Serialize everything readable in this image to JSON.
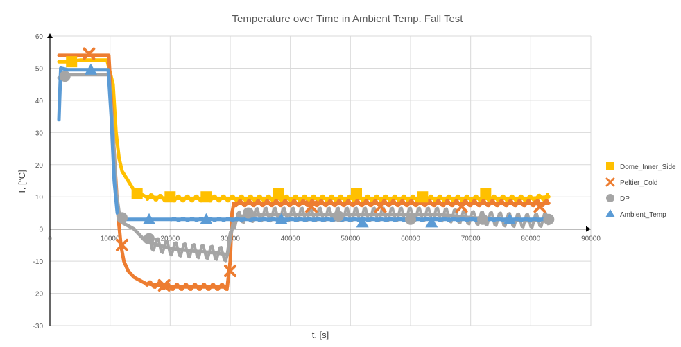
{
  "chart_data": {
    "type": "scatter",
    "title": "Temperature over Time in Ambient Temp. Fall Test",
    "xlabel": "t, [s]",
    "ylabel": "T, [°C]",
    "xlim": [
      0,
      90000
    ],
    "ylim": [
      -30,
      60
    ],
    "x_ticks": [
      0,
      10000,
      20000,
      30000,
      40000,
      50000,
      60000,
      70000,
      80000,
      90000
    ],
    "y_ticks": [
      -30,
      -20,
      -10,
      0,
      10,
      20,
      30,
      40,
      50,
      60
    ],
    "grid": true,
    "legend_position": "right",
    "series": [
      {
        "name": "Dome_Inner_Side",
        "color": "#ffc000",
        "marker": "square",
        "points": [
          [
            1500,
            52
          ],
          [
            3000,
            52
          ],
          [
            5000,
            52.5
          ],
          [
            7000,
            52.5
          ],
          [
            9500,
            52.5
          ],
          [
            10500,
            45
          ],
          [
            11000,
            30
          ],
          [
            11500,
            22
          ],
          [
            12000,
            18
          ],
          [
            13000,
            15
          ],
          [
            14000,
            12
          ],
          [
            15000,
            11
          ],
          [
            16000,
            10
          ],
          [
            20000,
            9.5
          ],
          [
            25000,
            9.5
          ],
          [
            30000,
            9.5
          ],
          [
            35000,
            9.5
          ],
          [
            40000,
            9.5
          ],
          [
            45000,
            9.5
          ],
          [
            50000,
            9.5
          ],
          [
            55000,
            9.5
          ],
          [
            60000,
            9.5
          ],
          [
            65000,
            9.5
          ],
          [
            70000,
            9.5
          ],
          [
            75000,
            9.5
          ],
          [
            80000,
            9.5
          ],
          [
            83000,
            10
          ]
        ],
        "markers_at": [
          [
            3600,
            52
          ],
          [
            14500,
            11
          ],
          [
            20000,
            10
          ],
          [
            26000,
            10
          ],
          [
            38000,
            11
          ],
          [
            51000,
            11
          ],
          [
            62000,
            10
          ],
          [
            72500,
            11
          ]
        ]
      },
      {
        "name": "Peltier_Cold",
        "color": "#ed7d31",
        "marker": "x",
        "points": [
          [
            1500,
            54
          ],
          [
            3000,
            54
          ],
          [
            5000,
            54
          ],
          [
            7000,
            54
          ],
          [
            9800,
            54
          ],
          [
            10200,
            40
          ],
          [
            10800,
            20
          ],
          [
            11300,
            5
          ],
          [
            11800,
            -5
          ],
          [
            12300,
            -10
          ],
          [
            13000,
            -13
          ],
          [
            14000,
            -15
          ],
          [
            15000,
            -16
          ],
          [
            16000,
            -17
          ],
          [
            18000,
            -17.5
          ],
          [
            20000,
            -18
          ],
          [
            25000,
            -18
          ],
          [
            29500,
            -18
          ],
          [
            30000,
            -10
          ],
          [
            30300,
            5
          ],
          [
            30600,
            8
          ],
          [
            35000,
            8
          ],
          [
            40000,
            8
          ],
          [
            45000,
            8
          ],
          [
            50000,
            8
          ],
          [
            55000,
            8
          ],
          [
            60000,
            8
          ],
          [
            65000,
            8
          ],
          [
            70000,
            8
          ],
          [
            75000,
            8
          ],
          [
            80000,
            8
          ],
          [
            83000,
            8
          ]
        ],
        "markers_at": [
          [
            6500,
            54.5
          ],
          [
            12000,
            -5
          ],
          [
            19000,
            -17.5
          ],
          [
            30000,
            -13
          ],
          [
            43500,
            7
          ],
          [
            55000,
            7
          ],
          [
            68500,
            7
          ],
          [
            81500,
            7
          ]
        ]
      },
      {
        "name": "DP",
        "color": "#a5a5a5",
        "marker": "circle",
        "points": [
          [
            1500,
            47
          ],
          [
            2500,
            48
          ],
          [
            4000,
            48
          ],
          [
            6000,
            48
          ],
          [
            8000,
            48
          ],
          [
            9800,
            48
          ],
          [
            10500,
            30
          ],
          [
            11000,
            12
          ],
          [
            11500,
            5
          ],
          [
            12000,
            2
          ],
          [
            13000,
            1
          ],
          [
            14000,
            0
          ],
          [
            15000,
            -2
          ],
          [
            16000,
            -4
          ],
          [
            18000,
            -5
          ],
          [
            20000,
            -6
          ],
          [
            22000,
            -6.5
          ],
          [
            25000,
            -7
          ],
          [
            28000,
            -7.5
          ],
          [
            29500,
            -8
          ],
          [
            30500,
            2
          ],
          [
            32000,
            4
          ],
          [
            35000,
            4.5
          ],
          [
            40000,
            4.5
          ],
          [
            45000,
            4.5
          ],
          [
            50000,
            4.5
          ],
          [
            55000,
            4.5
          ],
          [
            60000,
            4.5
          ],
          [
            65000,
            4.5
          ],
          [
            70000,
            3.5
          ],
          [
            75000,
            3
          ],
          [
            80000,
            2.5
          ],
          [
            83000,
            3
          ]
        ],
        "markers_at": [
          [
            2500,
            47.5
          ],
          [
            12000,
            3.5
          ],
          [
            16500,
            -3
          ],
          [
            33000,
            5
          ],
          [
            48000,
            4
          ],
          [
            60000,
            3
          ],
          [
            72000,
            3
          ],
          [
            83000,
            3
          ]
        ]
      },
      {
        "name": "Ambient_Temp",
        "color": "#5b9bd5",
        "marker": "triangle",
        "points": [
          [
            1500,
            34
          ],
          [
            1600,
            40
          ],
          [
            1800,
            50
          ],
          [
            3000,
            49.5
          ],
          [
            5000,
            49.5
          ],
          [
            7000,
            49.5
          ],
          [
            9700,
            49.5
          ],
          [
            10200,
            35
          ],
          [
            10700,
            15
          ],
          [
            11200,
            5
          ],
          [
            11700,
            3
          ],
          [
            12500,
            3
          ],
          [
            15000,
            3
          ],
          [
            20000,
            3
          ],
          [
            25000,
            3
          ],
          [
            30000,
            3
          ],
          [
            35000,
            3
          ],
          [
            40000,
            3
          ],
          [
            45000,
            3
          ],
          [
            50000,
            3
          ],
          [
            55000,
            3
          ],
          [
            60000,
            3
          ],
          [
            65000,
            3
          ],
          [
            70000,
            3
          ],
          [
            75000,
            3
          ],
          [
            80000,
            3
          ],
          [
            83000,
            3
          ]
        ],
        "markers_at": [
          [
            6800,
            49.5
          ],
          [
            16500,
            3
          ],
          [
            26000,
            3
          ],
          [
            38500,
            3
          ],
          [
            52000,
            2
          ],
          [
            63500,
            2
          ],
          [
            76500,
            3
          ]
        ]
      }
    ]
  }
}
